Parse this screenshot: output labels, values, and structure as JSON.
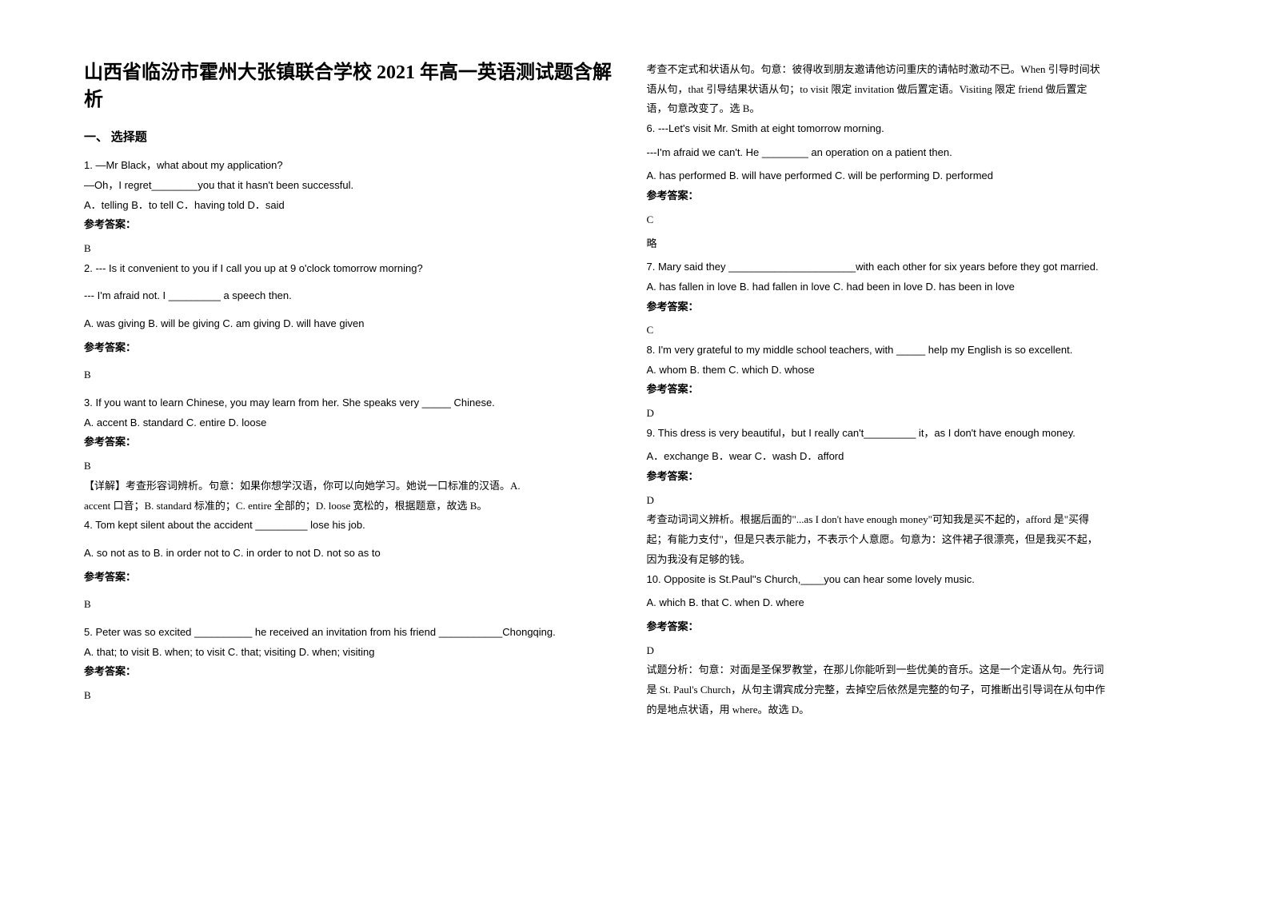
{
  "title": "山西省临汾市霍州大张镇联合学校 2021 年高一英语测试题含解析",
  "section1": "一、 选择题",
  "left": {
    "q1": {
      "l1": "1. —Mr Black，what about my application?",
      "l2": "—Oh，I regret________you that it hasn't been successful.",
      "opts": "A．telling         B．to tell    C．having told       D．said",
      "ansLabel": "参考答案：",
      "ans": "B"
    },
    "q2": {
      "l1": "2. --- Is it convenient to you if I call you up at 9 o'clock tomorrow morning?",
      "l2": "--- I'm afraid not. I _________ a speech then.",
      "opts": "A. was giving     B. will be giving         C. am giving         D. will have given",
      "ansLabel": "参考答案：",
      "ans": "B"
    },
    "q3": {
      "l1": "3. If you want to learn Chinese, you may learn from her. She speaks very _____ Chinese.",
      "opts": "A. accent    B. standard    C. entire    D. loose",
      "ansLabel": "参考答案：",
      "ans": "B",
      "explain1": "【详解】考查形容词辨析。句意：如果你想学汉语，你可以向她学习。她说一口标准的汉语。A.",
      "explain2": "accent 口音；B. standard 标准的；C. entire 全部的；D. loose 宽松的，根据题意，故选 B。"
    },
    "q4": {
      "l1": "4. Tom kept silent about the accident _________ lose his job.",
      "opts": "A. so not as to        B. in order not to    C. in order to not      D. not so as to",
      "ansLabel": "参考答案：",
      "ans": "B"
    },
    "q5": {
      "l1": "5. Peter was so excited __________ he received an invitation from his friend ___________Chongqing.",
      "opts": "A. that; to visit    B. when; to visit    C. that; visiting    D. when; visiting",
      "ansLabel": "参考答案：",
      "ans": "B"
    }
  },
  "right": {
    "q5explain": {
      "l1": "考查不定式和状语从句。句意：彼得收到朋友邀请他访问重庆的请帖时激动不已。When 引导时间状",
      "l2": "语从句，that 引导结果状语从句；to visit 限定 invitation 做后置定语。Visiting 限定 friend 做后置定",
      "l3": "语，句意改变了。选 B。"
    },
    "q6": {
      "l1": "6. ---Let's visit Mr. Smith at eight tomorrow morning.",
      "l2": "   ---I'm afraid we can't. He ________ an operation on a patient then.",
      "opts": "   A. has performed   B. will have performed   C. will be performing   D. performed",
      "ansLabel": "参考答案：",
      "ans": "C",
      "extra": "略"
    },
    "q7": {
      "l1": "7. Mary said they ______________________with each other for six years before they got married.",
      "opts": "     A. has fallen in love   B. had fallen in love   C. had been in love   D. has been in love",
      "ansLabel": "参考答案：",
      "ans": "C"
    },
    "q8": {
      "l1": "8. I'm very grateful to my middle school teachers, with _____ help my English is so excellent.",
      "opts": "   A. whom        B. them        C. which       D. whose",
      "ansLabel": "参考答案：",
      "ans": "D"
    },
    "q9": {
      "l1": "9. This dress is very beautiful，but I really can't_________ it，as I don't have enough money.",
      "opts": "A．exchange                       B．wear                            C．wash                               D．afford",
      "ansLabel": "参考答案：",
      "ans": "D",
      "explain1": "考查动词词义辨析。根据后面的\"...as I don't have enough money\"可知我是买不起的，afford 是\"买得",
      "explain2": "起；有能力支付\"，但是只表示能力，不表示个人意愿。句意为：这件裙子很漂亮，但是我买不起，",
      "explain3": "因为我没有足够的钱。"
    },
    "q10": {
      "l1": "10. Opposite is St.Paul''s Church,____you can hear some lovely music.",
      "opts": "A. which   B. that   C. when   D. where",
      "ansLabel": "参考答案：",
      "ans": "D",
      "explain1": "试题分析：句意：对面是圣保罗教堂，在那儿你能听到一些优美的音乐。这是一个定语从句。先行词",
      "explain2": "是 St. Paul's Church，从句主谓宾成分完整，去掉空后依然是完整的句子，可推断出引导词在从句中作",
      "explain3": "的是地点状语，用 where。故选 D。"
    }
  }
}
